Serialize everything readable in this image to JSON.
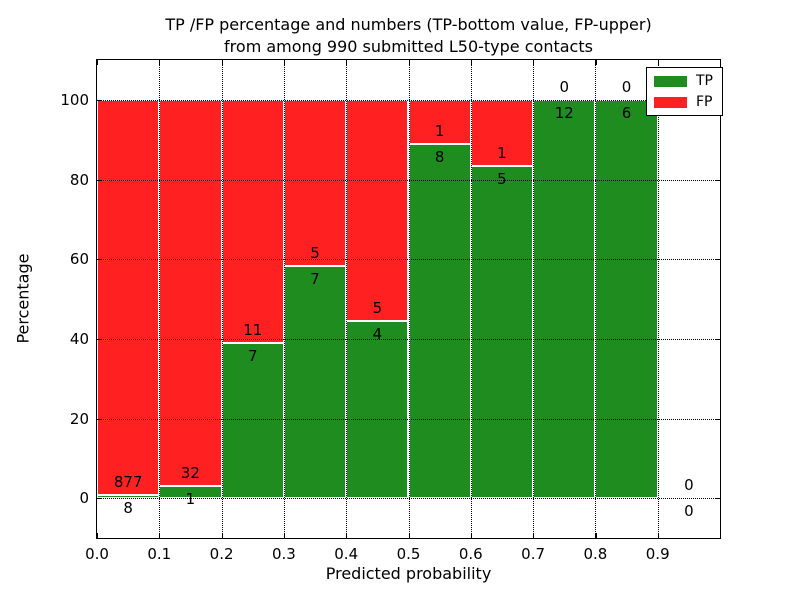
{
  "figure": {
    "title_line1": "TP /FP percentage and numbers (TP-bottom value, FP-upper)",
    "title_line2": "from among 990 submitted L50-type contacts"
  },
  "axes": {
    "xlabel": "Predicted probability",
    "ylabel": "Percentage"
  },
  "legend": {
    "items": [
      {
        "label": "TP",
        "color": "#1f8c1f"
      },
      {
        "label": "FP",
        "color": "#ff2121"
      }
    ]
  },
  "chart_data": {
    "type": "bar",
    "stacked": true,
    "title": "TP /FP percentage and numbers (TP-bottom value, FP-upper) from among 990 submitted L50-type contacts",
    "xlabel": "Predicted probability",
    "ylabel": "Percentage",
    "xlim": [
      0.0,
      1.0
    ],
    "ylim": [
      -10,
      110
    ],
    "xticks": [
      "0.0",
      "0.1",
      "0.2",
      "0.3",
      "0.4",
      "0.5",
      "0.6",
      "0.7",
      "0.8",
      "0.9"
    ],
    "yticks": [
      0,
      20,
      40,
      60,
      80,
      100
    ],
    "grid": true,
    "grid_style": "dotted",
    "legend_position": "upper-right",
    "bar_edge_color": "#ffffff",
    "colors": {
      "tp": "#1f8c1f",
      "fp": "#ff2121"
    },
    "total_contacts": 990,
    "bins": [
      {
        "range": [
          0.0,
          0.1
        ],
        "tp": 8,
        "fp": 877,
        "tp_pct": 0.9
      },
      {
        "range": [
          0.1,
          0.2
        ],
        "tp": 1,
        "fp": 32,
        "tp_pct": 3.0
      },
      {
        "range": [
          0.2,
          0.3
        ],
        "tp": 7,
        "fp": 11,
        "tp_pct": 38.9
      },
      {
        "range": [
          0.3,
          0.4
        ],
        "tp": 7,
        "fp": 5,
        "tp_pct": 58.3
      },
      {
        "range": [
          0.4,
          0.5
        ],
        "tp": 4,
        "fp": 5,
        "tp_pct": 44.4
      },
      {
        "range": [
          0.5,
          0.6
        ],
        "tp": 8,
        "fp": 1,
        "tp_pct": 88.9
      },
      {
        "range": [
          0.6,
          0.7
        ],
        "tp": 5,
        "fp": 1,
        "tp_pct": 83.3
      },
      {
        "range": [
          0.7,
          0.8
        ],
        "tp": 12,
        "fp": 0,
        "tp_pct": 100.0
      },
      {
        "range": [
          0.8,
          0.9
        ],
        "tp": 6,
        "fp": 0,
        "tp_pct": 100.0
      },
      {
        "range": [
          0.9,
          1.0
        ],
        "tp": 0,
        "fp": 0,
        "tp_pct": 0.0
      }
    ]
  }
}
